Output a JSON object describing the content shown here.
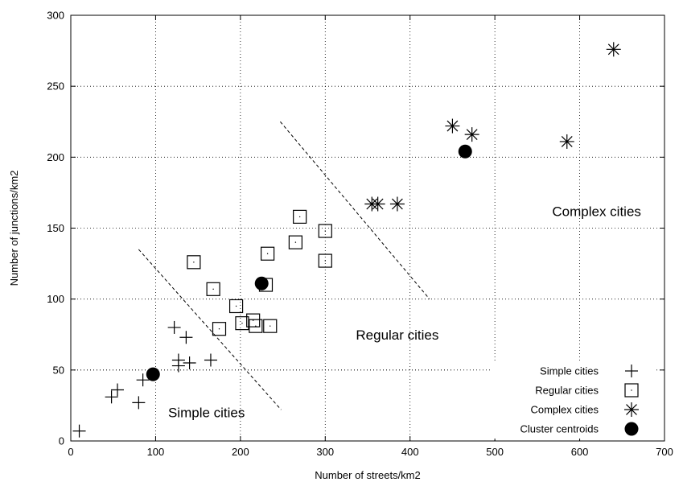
{
  "chart_data": {
    "type": "scatter",
    "xlabel": "Number of streets/km2",
    "ylabel": "Number of junctions/km2",
    "xlim": [
      0,
      700
    ],
    "ylim": [
      0,
      300
    ],
    "xticks": [
      0,
      100,
      200,
      300,
      400,
      500,
      600,
      700
    ],
    "yticks": [
      0,
      50,
      100,
      150,
      200,
      250,
      300
    ],
    "grid": true,
    "legend_position": "bottom-right",
    "series": [
      {
        "name": "Simple cities",
        "marker": "plus",
        "points": [
          [
            10,
            7
          ],
          [
            48,
            31
          ],
          [
            55,
            36
          ],
          [
            80,
            27
          ],
          [
            85,
            43
          ],
          [
            122,
            80
          ],
          [
            127,
            57
          ],
          [
            127,
            53
          ],
          [
            136,
            73
          ],
          [
            140,
            55
          ],
          [
            165,
            57
          ]
        ]
      },
      {
        "name": "Regular cities",
        "marker": "square",
        "points": [
          [
            145,
            126
          ],
          [
            168,
            107
          ],
          [
            175,
            79
          ],
          [
            195,
            95
          ],
          [
            202,
            83
          ],
          [
            215,
            85
          ],
          [
            218,
            81
          ],
          [
            230,
            110
          ],
          [
            232,
            132
          ],
          [
            235,
            81
          ],
          [
            265,
            140
          ],
          [
            270,
            158
          ],
          [
            300,
            148
          ],
          [
            300,
            127
          ]
        ]
      },
      {
        "name": "Complex cities",
        "marker": "star",
        "points": [
          [
            355,
            167
          ],
          [
            362,
            167
          ],
          [
            385,
            167
          ],
          [
            450,
            222
          ],
          [
            473,
            216
          ],
          [
            585,
            211
          ],
          [
            640,
            276
          ]
        ]
      },
      {
        "name": "Cluster centroids",
        "marker": "filled-circle",
        "points": [
          [
            97,
            47
          ],
          [
            225,
            111
          ],
          [
            465,
            204
          ]
        ]
      }
    ],
    "annotations": [
      {
        "text": "Simple cities",
        "x": 160,
        "y": 20
      },
      {
        "text": "Regular cities",
        "x": 385,
        "y": 75
      },
      {
        "text": "Complex cities",
        "x": 620,
        "y": 162
      }
    ],
    "separators": [
      {
        "from": [
          80,
          135
        ],
        "to": [
          248,
          22
        ]
      },
      {
        "from": [
          247,
          225
        ],
        "to": [
          423,
          100
        ]
      }
    ],
    "extra_lines": [
      {
        "from": [
          0,
          50
        ],
        "to": [
          450,
          50
        ]
      },
      {
        "from": [
          500,
          0
        ],
        "to": [
          500,
          50
        ]
      }
    ]
  }
}
